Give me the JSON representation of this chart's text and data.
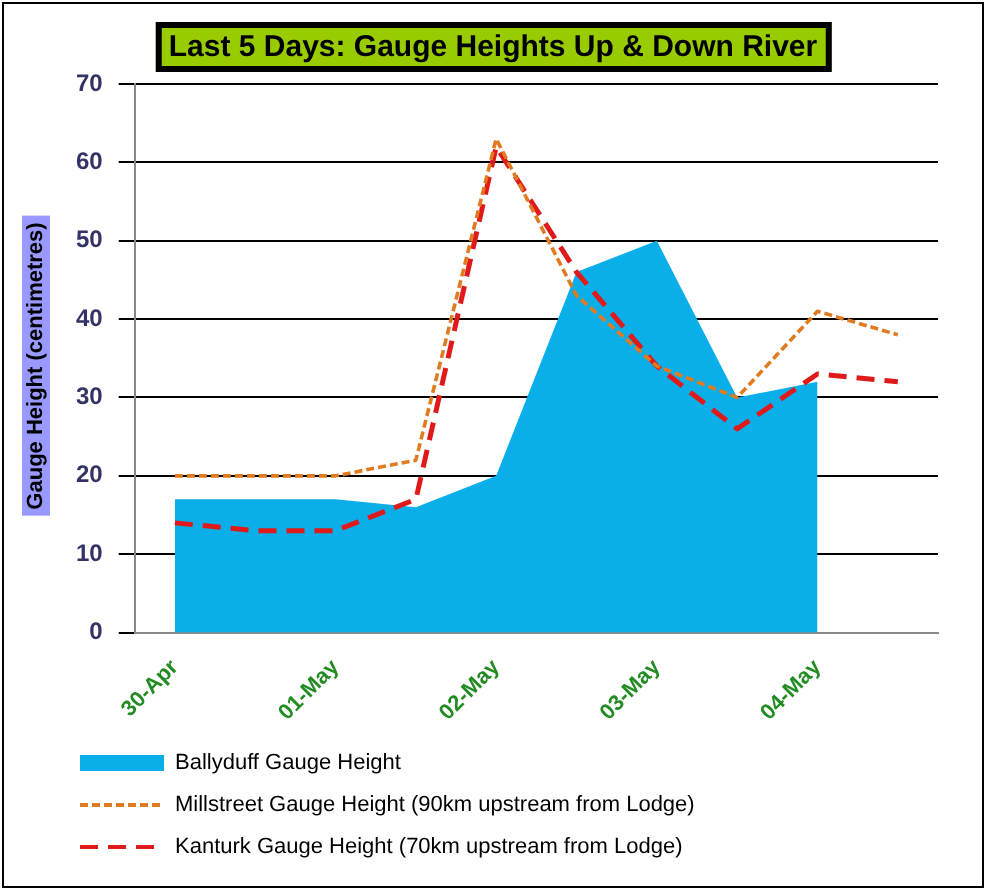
{
  "chart_data": {
    "type": "line",
    "title": "Last 5 Days: Gauge Heights Up & Down River",
    "ylabel": "Gauge Height  (centimetres)",
    "categories": [
      "30-Apr",
      null,
      "01-May",
      null,
      "02-May",
      null,
      "03-May",
      null,
      "04-May",
      null
    ],
    "series": [
      {
        "name": "Ballyduff Gauge Height",
        "type": "area",
        "color": "#0aaee8",
        "values": [
          17,
          17,
          17,
          16,
          20,
          46,
          50,
          30,
          32,
          null
        ]
      },
      {
        "name": "Millstreet Gauge Height (90km upstream from Lodge)",
        "type": "line",
        "line_style": "dotted",
        "color": "#e07b20",
        "values": [
          20,
          20,
          20,
          22,
          63,
          43,
          34,
          30,
          41,
          38
        ]
      },
      {
        "name": "Kanturk Gauge Height (70km upstream from Lodge)",
        "type": "line",
        "line_style": "dashed",
        "color": "#e01a1a",
        "values": [
          14,
          13,
          13,
          17,
          62,
          46,
          34,
          26,
          33,
          32
        ]
      }
    ],
    "ylim": [
      0,
      70
    ],
    "yticks": [
      0,
      10,
      20,
      30,
      40,
      50,
      60,
      70
    ],
    "grid": "y",
    "legend": "bottom",
    "marker": "none"
  }
}
